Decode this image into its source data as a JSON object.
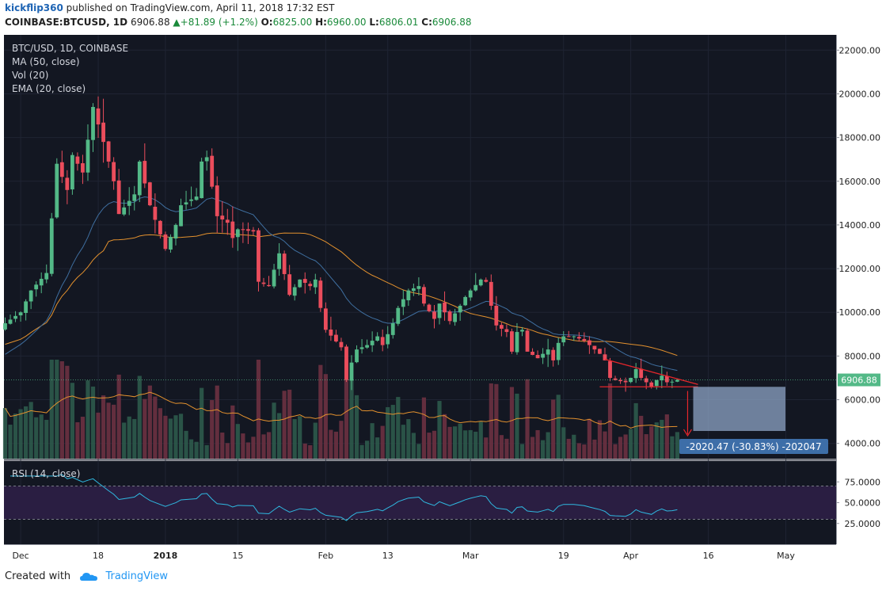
{
  "header": {
    "user": "kickflip360",
    "published_text": "published on TradingView.com, April 11, 2018 17:32 EST",
    "symbol": "COINBASE:BTCUSD, 1D",
    "last": "6906.88",
    "change_arrow": "▲",
    "change": "+81.89 (+1.2%)",
    "o_label": "O:",
    "o_val": "6825.00",
    "h_label": "H:",
    "h_val": "6960.00",
    "l_label": "L:",
    "l_val": "6806.01",
    "c_label": "C:",
    "c_val": "6906.88"
  },
  "legend": {
    "line1": "BTC/USD, 1D, COINBASE",
    "line2": "MA (50, close)",
    "line3": "Vol (20)",
    "line4": "EMA (20, close)",
    "rsi": "RSI (14, close)"
  },
  "price_label": "6906.88",
  "measure_label": "-2020.47 (-30.83%) -202047",
  "footer": {
    "created_with": "Created with",
    "brand": "TradingView"
  },
  "colors": {
    "background": "#131722",
    "up": "#53b987",
    "down": "#eb4d5c",
    "ma": "#e3912e",
    "ema": "#3f6fa0",
    "rsi": "#2fb8e0",
    "rsi_band": "#2a1e42"
  },
  "chart_data": {
    "type": "candlestick",
    "title": "BTC/USD, 1D, COINBASE",
    "ylim": [
      3300,
      22700
    ],
    "y_ticks": [
      "22000.00",
      "20000.00",
      "18000.00",
      "16000.00",
      "14000.00",
      "12000.00",
      "10000.00",
      "8000.00",
      "6000.00",
      "4000.00"
    ],
    "y_tick_values": [
      22000,
      20000,
      18000,
      16000,
      14000,
      12000,
      10000,
      8000,
      6000,
      4000
    ],
    "x_ticks": [
      {
        "label": "Dec",
        "day": 3
      },
      {
        "label": "18",
        "day": 18
      },
      {
        "label": "2018",
        "day": 31
      },
      {
        "label": "15",
        "day": 45
      },
      {
        "label": "Feb",
        "day": 62
      },
      {
        "label": "13",
        "day": 74
      },
      {
        "label": "Mar",
        "day": 90
      },
      {
        "label": "19",
        "day": 108
      },
      {
        "label": "Apr",
        "day": 121
      },
      {
        "label": "16",
        "day": 136
      },
      {
        "label": "May",
        "day": 151
      }
    ],
    "rsi_ticks": [
      "75.0000",
      "50.0000",
      "25.0000"
    ],
    "rsi_tick_values": [
      75,
      50,
      25
    ],
    "rsi_band": [
      30,
      70
    ],
    "anchors": [
      {
        "d": 0,
        "c": 9500
      },
      {
        "d": 3,
        "c": 10000
      },
      {
        "d": 5,
        "c": 11000
      },
      {
        "d": 8,
        "c": 11800
      },
      {
        "d": 9,
        "c": 14300
      },
      {
        "d": 10,
        "c": 16800
      },
      {
        "d": 12,
        "c": 15600
      },
      {
        "d": 13,
        "c": 17200
      },
      {
        "d": 15,
        "c": 16400
      },
      {
        "d": 17,
        "c": 19400
      },
      {
        "d": 19,
        "c": 17800
      },
      {
        "d": 21,
        "c": 16000
      },
      {
        "d": 22,
        "c": 14500
      },
      {
        "d": 25,
        "c": 15400
      },
      {
        "d": 26,
        "c": 16900
      },
      {
        "d": 28,
        "c": 14900
      },
      {
        "d": 31,
        "c": 12900
      },
      {
        "d": 33,
        "c": 14000
      },
      {
        "d": 34,
        "c": 14900
      },
      {
        "d": 37,
        "c": 15300
      },
      {
        "d": 38,
        "c": 16900
      },
      {
        "d": 39,
        "c": 17100
      },
      {
        "d": 41,
        "c": 14400
      },
      {
        "d": 43,
        "c": 14100
      },
      {
        "d": 44,
        "c": 13400
      },
      {
        "d": 45,
        "c": 13800
      },
      {
        "d": 48,
        "c": 13700
      },
      {
        "d": 49,
        "c": 11400
      },
      {
        "d": 51,
        "c": 11200
      },
      {
        "d": 53,
        "c": 12700
      },
      {
        "d": 55,
        "c": 10800
      },
      {
        "d": 57,
        "c": 11500
      },
      {
        "d": 59,
        "c": 11200
      },
      {
        "d": 60,
        "c": 11500
      },
      {
        "d": 61,
        "c": 10200
      },
      {
        "d": 62,
        "c": 9200
      },
      {
        "d": 65,
        "c": 8400
      },
      {
        "d": 66,
        "c": 6900
      },
      {
        "d": 67,
        "c": 7700
      },
      {
        "d": 68,
        "c": 8300
      },
      {
        "d": 70,
        "c": 8500
      },
      {
        "d": 72,
        "c": 8900
      },
      {
        "d": 73,
        "c": 8500
      },
      {
        "d": 75,
        "c": 9500
      },
      {
        "d": 76,
        "c": 10200
      },
      {
        "d": 78,
        "c": 11000
      },
      {
        "d": 80,
        "c": 11200
      },
      {
        "d": 81,
        "c": 10400
      },
      {
        "d": 83,
        "c": 9700
      },
      {
        "d": 84,
        "c": 10400
      },
      {
        "d": 86,
        "c": 9600
      },
      {
        "d": 88,
        "c": 10300
      },
      {
        "d": 89,
        "c": 10700
      },
      {
        "d": 90,
        "c": 11000
      },
      {
        "d": 92,
        "c": 11500
      },
      {
        "d": 93,
        "c": 11400
      },
      {
        "d": 94,
        "c": 10300
      },
      {
        "d": 95,
        "c": 9400
      },
      {
        "d": 97,
        "c": 9100
      },
      {
        "d": 98,
        "c": 8200
      },
      {
        "d": 99,
        "c": 9100
      },
      {
        "d": 100,
        "c": 9200
      },
      {
        "d": 101,
        "c": 8200
      },
      {
        "d": 103,
        "c": 7900
      },
      {
        "d": 104,
        "c": 8100
      },
      {
        "d": 105,
        "c": 8300
      },
      {
        "d": 106,
        "c": 7800
      },
      {
        "d": 107,
        "c": 8600
      },
      {
        "d": 108,
        "c": 8900
      },
      {
        "d": 110,
        "c": 8900
      },
      {
        "d": 112,
        "c": 8700
      },
      {
        "d": 113,
        "c": 8500
      },
      {
        "d": 114,
        "c": 8300
      },
      {
        "d": 115,
        "c": 8100
      },
      {
        "d": 116,
        "c": 7800
      },
      {
        "d": 117,
        "c": 7000
      },
      {
        "d": 118,
        "c": 6900
      },
      {
        "d": 120,
        "c": 6800
      },
      {
        "d": 121,
        "c": 7000
      },
      {
        "d": 122,
        "c": 7400
      },
      {
        "d": 123,
        "c": 7000
      },
      {
        "d": 124,
        "c": 6800
      },
      {
        "d": 125,
        "c": 6600
      },
      {
        "d": 126,
        "c": 6900
      },
      {
        "d": 127,
        "c": 7100
      },
      {
        "d": 128,
        "c": 6800
      },
      {
        "d": 129,
        "c": 6825
      },
      {
        "d": 130,
        "c": 6906.88
      }
    ],
    "last_candle": {
      "open": 6825.0,
      "high": 6960.0,
      "low": 6806.01,
      "close": 6906.88
    },
    "triangle_top": [
      {
        "d": 116,
        "p": 7850
      },
      {
        "d": 134,
        "p": 6700
      }
    ],
    "triangle_bottom": [
      {
        "d": 115,
        "p": 6590
      },
      {
        "d": 134,
        "p": 6590
      }
    ],
    "measure_drop": -2020.47,
    "measure_pct": "-30.83%"
  }
}
